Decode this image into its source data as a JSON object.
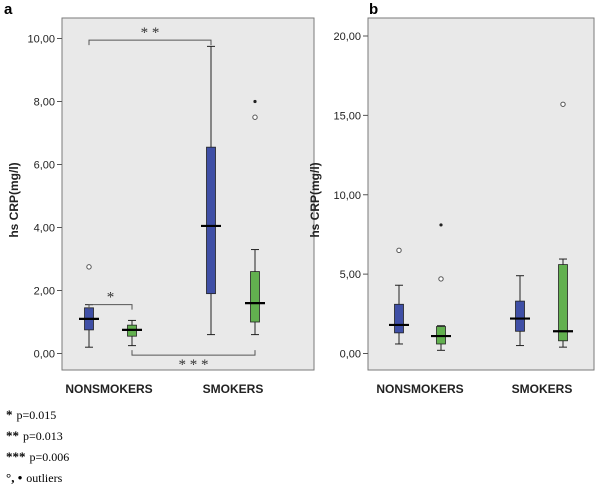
{
  "chart_data": [
    {
      "panel": "a",
      "type": "boxplot",
      "ylabel": "hs CRP(mg/l)",
      "xlabel": "",
      "ylim": [
        0,
        10.4
      ],
      "y_ticks": [
        "0,00",
        "2,00",
        "4,00",
        "6,00",
        "8,00",
        "10,00"
      ],
      "categories": [
        "NONSMOKERS",
        "SMOKERS"
      ],
      "series": [
        {
          "name": "series 1",
          "color": "#3f4fa6",
          "boxes": [
            {
              "category": "NONSMOKERS",
              "whisker_low": 0.2,
              "q1": 0.75,
              "median": 1.1,
              "q3": 1.45,
              "whisker_high": 1.55,
              "outliers": [
                {
                  "value": 2.75,
                  "kind": "circle"
                }
              ]
            },
            {
              "category": "SMOKERS",
              "whisker_low": 0.6,
              "q1": 1.9,
              "median": 4.05,
              "q3": 6.55,
              "whisker_high": 9.75,
              "outliers": []
            }
          ]
        },
        {
          "name": "series 2",
          "color": "#62b04f",
          "boxes": [
            {
              "category": "NONSMOKERS",
              "whisker_low": 0.25,
              "q1": 0.55,
              "median": 0.75,
              "q3": 0.9,
              "whisker_high": 1.05,
              "outliers": []
            },
            {
              "category": "SMOKERS",
              "whisker_low": 0.6,
              "q1": 1.0,
              "median": 1.6,
              "q3": 2.6,
              "whisker_high": 3.3,
              "outliers": [
                {
                  "value": 7.5,
                  "kind": "circle"
                },
                {
                  "value": 8.0,
                  "kind": "star"
                }
              ]
            }
          ]
        }
      ],
      "significance": [
        {
          "label": "*",
          "from": "NONSMOKERS s1",
          "to": "NONSMOKERS s2",
          "position": "above",
          "level": 1.55
        },
        {
          "label": "* *",
          "from": "NONSMOKERS s1",
          "to": "SMOKERS s1",
          "position": "above",
          "level": 9.95
        },
        {
          "label": "* * *",
          "from": "NONSMOKERS s2",
          "to": "SMOKERS s2",
          "position": "below",
          "level": -0.05
        }
      ]
    },
    {
      "panel": "b",
      "type": "boxplot",
      "ylabel": "hs CRP(mg/l)",
      "xlabel": "",
      "ylim": [
        0,
        20.8
      ],
      "y_ticks": [
        "0,00",
        "5,00",
        "10,00",
        "15,00",
        "20,00"
      ],
      "categories": [
        "NONSMOKERS",
        "SMOKERS"
      ],
      "series": [
        {
          "name": "series 1",
          "color": "#3f4fa6",
          "boxes": [
            {
              "category": "NONSMOKERS",
              "whisker_low": 0.6,
              "q1": 1.3,
              "median": 1.8,
              "q3": 3.1,
              "whisker_high": 4.3,
              "outliers": [
                {
                  "value": 6.5,
                  "kind": "circle"
                }
              ]
            },
            {
              "category": "SMOKERS",
              "whisker_low": 0.5,
              "q1": 1.4,
              "median": 2.2,
              "q3": 3.3,
              "whisker_high": 4.9,
              "outliers": []
            }
          ]
        },
        {
          "name": "series 2",
          "color": "#62b04f",
          "boxes": [
            {
              "category": "NONSMOKERS",
              "whisker_low": 0.2,
              "q1": 0.6,
              "median": 1.1,
              "q3": 1.7,
              "whisker_high": 1.75,
              "outliers": [
                {
                  "value": 4.7,
                  "kind": "circle"
                },
                {
                  "value": 8.1,
                  "kind": "star"
                }
              ]
            },
            {
              "category": "SMOKERS",
              "whisker_low": 0.4,
              "q1": 0.8,
              "median": 1.4,
              "q3": 5.6,
              "whisker_high": 5.95,
              "outliers": [
                {
                  "value": 15.7,
                  "kind": "circle"
                }
              ]
            }
          ]
        }
      ],
      "significance": []
    }
  ],
  "legend": [
    {
      "symbol": "*",
      "text": "p=0.015"
    },
    {
      "symbol": "**",
      "text": "p=0.013"
    },
    {
      "symbol": "***",
      "text": "p=0.006"
    },
    {
      "symbol": "°, •",
      "text": "outliers"
    }
  ]
}
